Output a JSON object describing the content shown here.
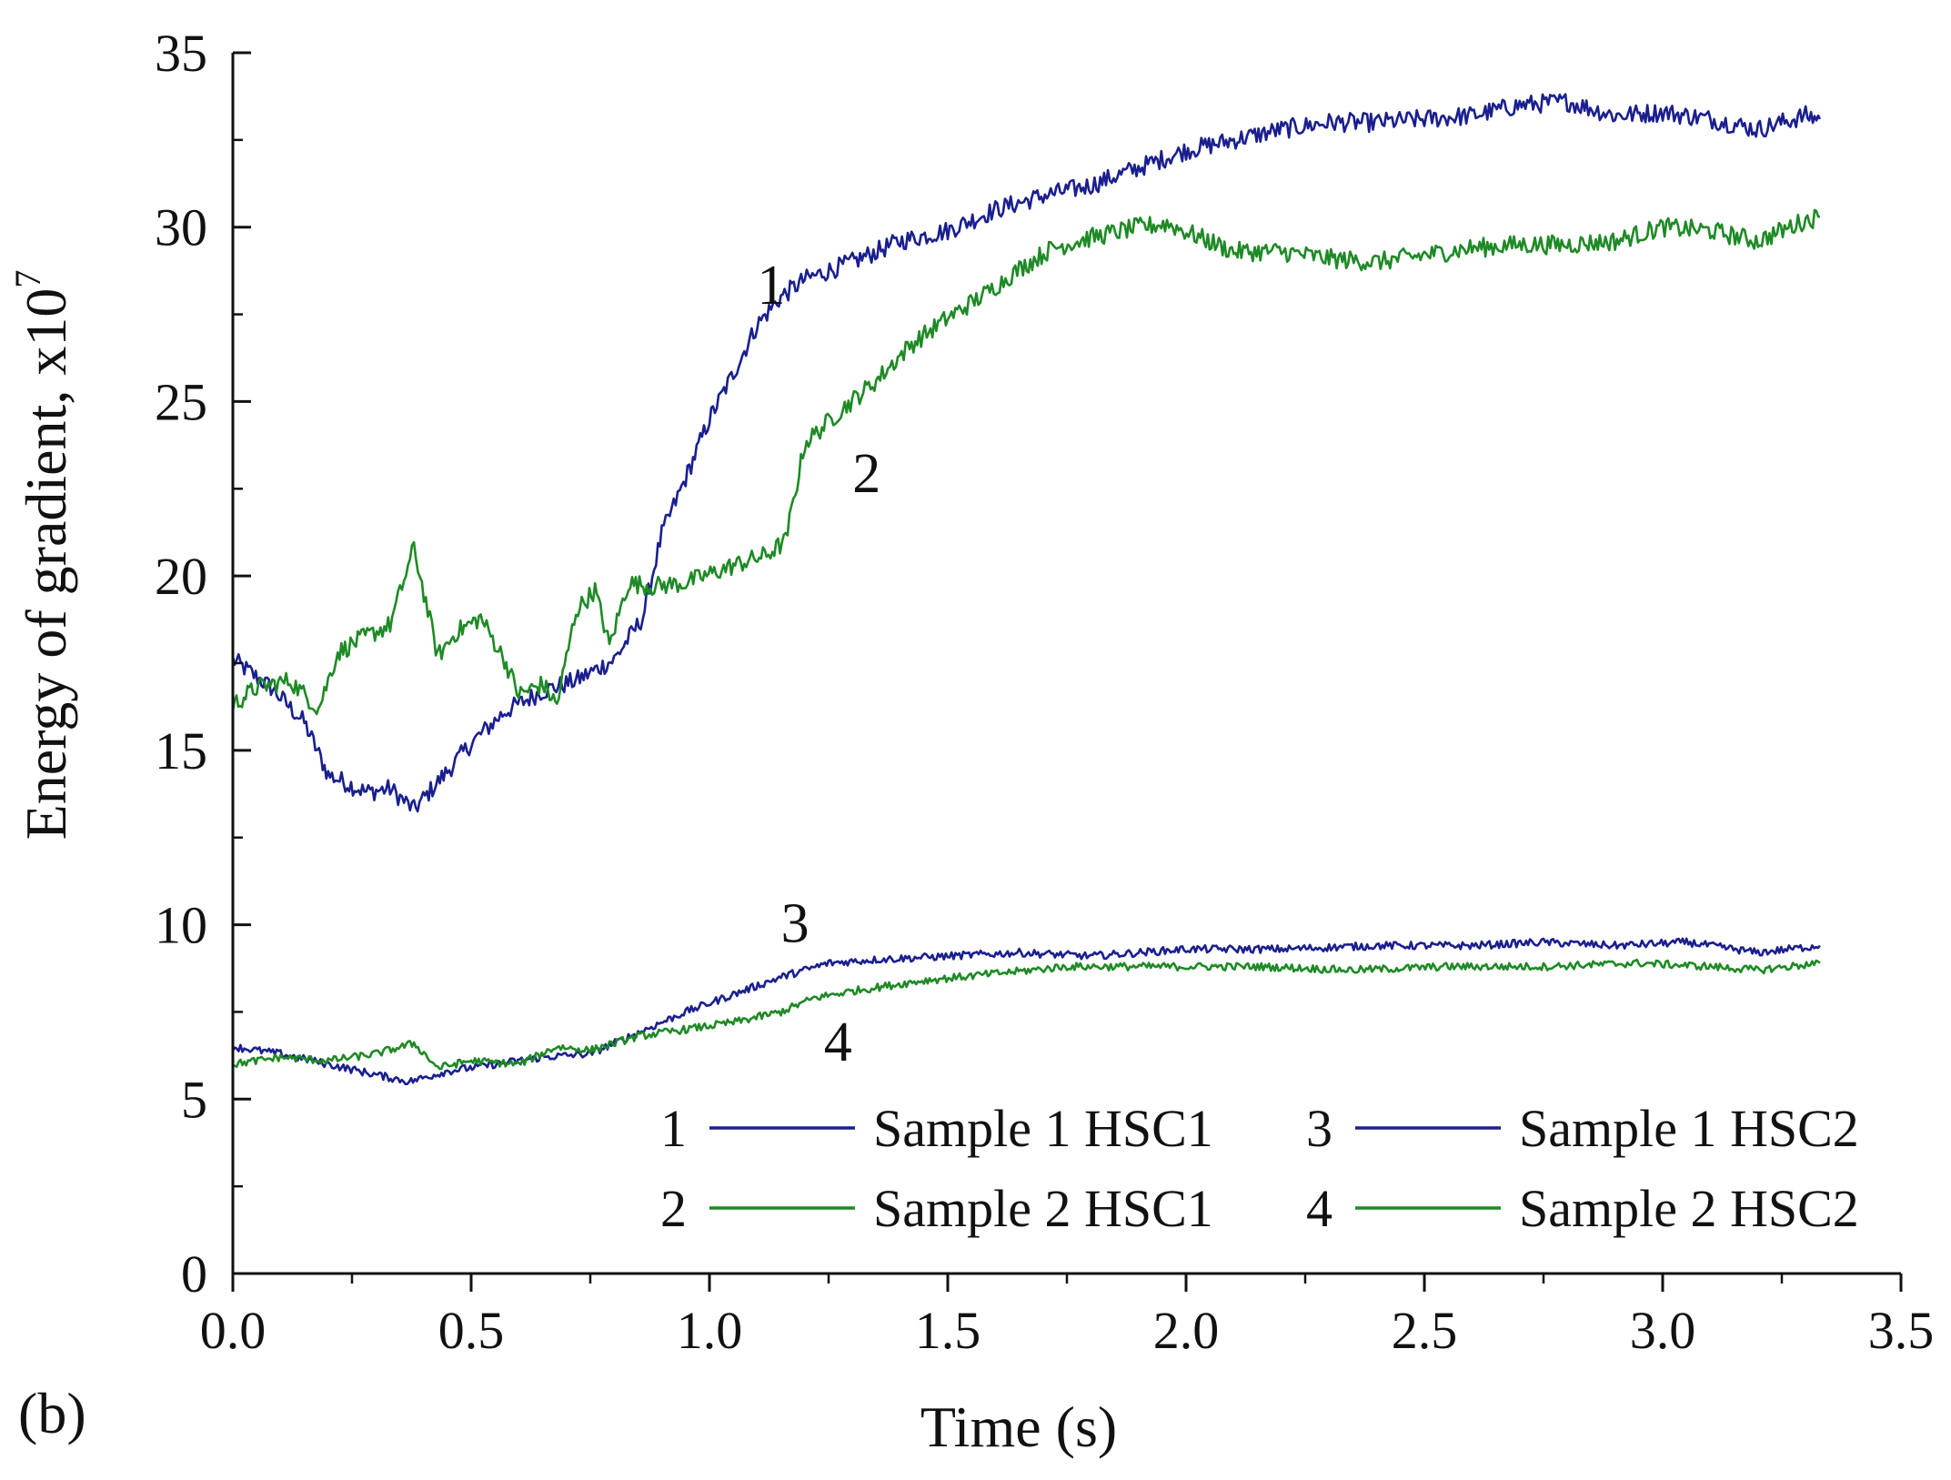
{
  "chart_data": {
    "type": "line",
    "panel_label": "(b)",
    "xlabel": "Time (s)",
    "ylabel": "Energy of gradient, x10",
    "ylabel_exponent": "7",
    "xlim": [
      0.0,
      3.5
    ],
    "ylim": [
      0,
      35
    ],
    "x_ticks": [
      "0.0",
      "0.5",
      "1.0",
      "1.5",
      "2.0",
      "2.5",
      "3.0",
      "3.5"
    ],
    "y_ticks": [
      "0",
      "5",
      "10",
      "15",
      "20",
      "25",
      "30",
      "35"
    ],
    "legend_position": "bottom-right",
    "series": [
      {
        "id": "1",
        "name": "Sample 1 HSC1",
        "color": "#1a1f8f",
        "label_at": [
          1.1,
          27.8
        ],
        "points": [
          [
            0.0,
            17.6
          ],
          [
            0.08,
            16.8
          ],
          [
            0.15,
            15.8
          ],
          [
            0.2,
            14.3
          ],
          [
            0.28,
            13.8
          ],
          [
            0.33,
            13.9
          ],
          [
            0.38,
            13.3
          ],
          [
            0.45,
            14.4
          ],
          [
            0.5,
            15.2
          ],
          [
            0.57,
            16.1
          ],
          [
            0.65,
            16.7
          ],
          [
            0.72,
            17.0
          ],
          [
            0.8,
            17.6
          ],
          [
            0.86,
            18.8
          ],
          [
            0.9,
            21.2
          ],
          [
            0.95,
            22.8
          ],
          [
            1.0,
            24.5
          ],
          [
            1.05,
            25.8
          ],
          [
            1.1,
            27.2
          ],
          [
            1.15,
            28.0
          ],
          [
            1.2,
            28.5
          ],
          [
            1.3,
            29.0
          ],
          [
            1.4,
            29.6
          ],
          [
            1.5,
            29.9
          ],
          [
            1.6,
            30.5
          ],
          [
            1.7,
            30.9
          ],
          [
            1.8,
            31.2
          ],
          [
            1.9,
            31.7
          ],
          [
            2.0,
            32.2
          ],
          [
            2.1,
            32.5
          ],
          [
            2.2,
            32.8
          ],
          [
            2.3,
            33.0
          ],
          [
            2.4,
            33.0
          ],
          [
            2.5,
            33.1
          ],
          [
            2.6,
            33.2
          ],
          [
            2.7,
            33.5
          ],
          [
            2.8,
            33.6
          ],
          [
            2.9,
            33.2
          ],
          [
            3.0,
            33.3
          ],
          [
            3.1,
            33.1
          ],
          [
            3.2,
            32.8
          ],
          [
            3.3,
            33.2
          ],
          [
            3.33,
            33.1
          ]
        ]
      },
      {
        "id": "2",
        "name": "Sample 2 HSC1",
        "color": "#1e8a25",
        "label_at": [
          1.3,
          22.4
        ],
        "points": [
          [
            0.0,
            16.3
          ],
          [
            0.05,
            16.8
          ],
          [
            0.12,
            17.0
          ],
          [
            0.18,
            16.2
          ],
          [
            0.22,
            17.8
          ],
          [
            0.27,
            18.2
          ],
          [
            0.33,
            18.6
          ],
          [
            0.38,
            20.8
          ],
          [
            0.43,
            17.7
          ],
          [
            0.47,
            18.4
          ],
          [
            0.52,
            18.8
          ],
          [
            0.57,
            17.6
          ],
          [
            0.6,
            16.6
          ],
          [
            0.65,
            16.9
          ],
          [
            0.68,
            16.3
          ],
          [
            0.72,
            19.0
          ],
          [
            0.76,
            19.6
          ],
          [
            0.79,
            18.0
          ],
          [
            0.83,
            19.8
          ],
          [
            0.88,
            19.7
          ],
          [
            0.95,
            19.8
          ],
          [
            1.05,
            20.3
          ],
          [
            1.12,
            20.6
          ],
          [
            1.16,
            21.0
          ],
          [
            1.2,
            23.8
          ],
          [
            1.28,
            24.8
          ],
          [
            1.35,
            25.6
          ],
          [
            1.42,
            26.6
          ],
          [
            1.5,
            27.4
          ],
          [
            1.58,
            28.1
          ],
          [
            1.65,
            28.8
          ],
          [
            1.72,
            29.4
          ],
          [
            1.8,
            29.7
          ],
          [
            1.9,
            30.0
          ],
          [
            1.96,
            30.1
          ],
          [
            2.03,
            29.7
          ],
          [
            2.1,
            29.3
          ],
          [
            2.2,
            29.3
          ],
          [
            2.3,
            29.1
          ],
          [
            2.4,
            29.0
          ],
          [
            2.5,
            29.2
          ],
          [
            2.6,
            29.4
          ],
          [
            2.7,
            29.5
          ],
          [
            2.8,
            29.5
          ],
          [
            2.9,
            29.6
          ],
          [
            3.0,
            30.0
          ],
          [
            3.1,
            29.9
          ],
          [
            3.2,
            29.6
          ],
          [
            3.3,
            30.2
          ],
          [
            3.33,
            30.3
          ]
        ]
      },
      {
        "id": "3",
        "name": "Sample 1 HSC2",
        "color": "#1a1f8f",
        "label_at": [
          1.15,
          9.5
        ],
        "points": [
          [
            0.0,
            6.5
          ],
          [
            0.1,
            6.3
          ],
          [
            0.2,
            6.0
          ],
          [
            0.3,
            5.7
          ],
          [
            0.37,
            5.5
          ],
          [
            0.45,
            5.8
          ],
          [
            0.55,
            6.0
          ],
          [
            0.65,
            6.2
          ],
          [
            0.75,
            6.3
          ],
          [
            0.85,
            6.9
          ],
          [
            0.95,
            7.5
          ],
          [
            1.05,
            8.0
          ],
          [
            1.15,
            8.5
          ],
          [
            1.25,
            8.9
          ],
          [
            1.35,
            9.0
          ],
          [
            1.5,
            9.1
          ],
          [
            1.65,
            9.2
          ],
          [
            1.8,
            9.1
          ],
          [
            2.0,
            9.3
          ],
          [
            2.2,
            9.3
          ],
          [
            2.4,
            9.4
          ],
          [
            2.6,
            9.4
          ],
          [
            2.75,
            9.5
          ],
          [
            2.9,
            9.4
          ],
          [
            3.05,
            9.5
          ],
          [
            3.2,
            9.2
          ],
          [
            3.33,
            9.4
          ]
        ]
      },
      {
        "id": "4",
        "name": "Sample 2 HSC2",
        "color": "#1e8a25",
        "label_at": [
          1.24,
          6.1
        ],
        "points": [
          [
            0.0,
            6.0
          ],
          [
            0.1,
            6.2
          ],
          [
            0.2,
            6.1
          ],
          [
            0.3,
            6.3
          ],
          [
            0.38,
            6.6
          ],
          [
            0.43,
            5.9
          ],
          [
            0.5,
            6.1
          ],
          [
            0.6,
            6.0
          ],
          [
            0.68,
            6.5
          ],
          [
            0.75,
            6.4
          ],
          [
            0.85,
            6.8
          ],
          [
            0.95,
            7.0
          ],
          [
            1.05,
            7.2
          ],
          [
            1.15,
            7.5
          ],
          [
            1.22,
            7.9
          ],
          [
            1.3,
            8.1
          ],
          [
            1.45,
            8.4
          ],
          [
            1.6,
            8.6
          ],
          [
            1.75,
            8.8
          ],
          [
            1.95,
            8.8
          ],
          [
            2.15,
            8.8
          ],
          [
            2.35,
            8.7
          ],
          [
            2.55,
            8.8
          ],
          [
            2.75,
            8.8
          ],
          [
            2.95,
            8.9
          ],
          [
            3.1,
            8.8
          ],
          [
            3.2,
            8.7
          ],
          [
            3.33,
            8.9
          ]
        ]
      }
    ],
    "legend": [
      {
        "id": "1",
        "name": "Sample 1 HSC1",
        "color": "#1a1f8f"
      },
      {
        "id": "3",
        "name": "Sample 1 HSC2",
        "color": "#1a1f8f"
      },
      {
        "id": "2",
        "name": "Sample 2 HSC1",
        "color": "#1e8a25"
      },
      {
        "id": "4",
        "name": "Sample 2 HSC2",
        "color": "#1e8a25"
      }
    ]
  }
}
